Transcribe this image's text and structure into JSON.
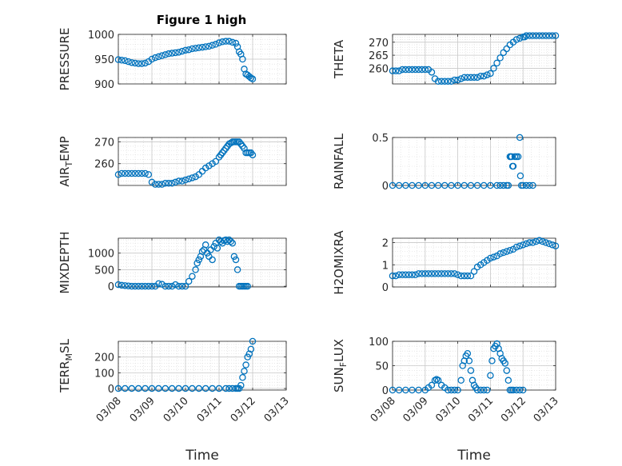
{
  "title": "Figure 1 high",
  "x_axis_label": "Time",
  "x_tick_labels": [
    "03/08",
    "03/09",
    "03/10",
    "03/11",
    "03/12",
    "03/13"
  ],
  "marker_color": "#0072BD",
  "chart_data": [
    {
      "type": "scatter",
      "id": "pressure",
      "ylabel": "PRESSURE",
      "xlabel": "",
      "title": "Figure 1 high",
      "ylim": [
        900,
        1000
      ],
      "yticks": [
        900,
        950,
        1000
      ],
      "ytick_labels": [
        "900",
        "950",
        "1000"
      ],
      "xlim": [
        0,
        5
      ],
      "grid": true,
      "x": [
        0.0,
        0.1,
        0.2,
        0.3,
        0.4,
        0.5,
        0.6,
        0.7,
        0.8,
        0.9,
        1.0,
        1.1,
        1.2,
        1.3,
        1.4,
        1.5,
        1.6,
        1.7,
        1.8,
        1.9,
        2.0,
        2.1,
        2.2,
        2.3,
        2.4,
        2.5,
        2.6,
        2.7,
        2.8,
        2.9,
        3.0,
        3.1,
        3.2,
        3.3,
        3.4,
        3.5,
        3.55,
        3.6,
        3.65,
        3.7,
        3.75,
        3.8,
        3.85,
        3.9,
        3.95,
        4.0
      ],
      "y": [
        949,
        948,
        947,
        945,
        943,
        942,
        941,
        941,
        942,
        945,
        950,
        953,
        955,
        957,
        959,
        961,
        962,
        963,
        964,
        966,
        968,
        969,
        971,
        972,
        973,
        974,
        975,
        976,
        978,
        980,
        983,
        985,
        986,
        986,
        984,
        982,
        975,
        965,
        960,
        950,
        930,
        920,
        918,
        915,
        912,
        910
      ]
    },
    {
      "type": "scatter",
      "id": "theta",
      "ylabel": "THETA",
      "xlabel": "",
      "ylim": [
        254,
        273
      ],
      "yticks": [
        260,
        265,
        270
      ],
      "ytick_labels": [
        "260",
        "265",
        "270"
      ],
      "xlim": [
        0,
        5
      ],
      "grid": true,
      "x": [
        0.0,
        0.1,
        0.2,
        0.3,
        0.4,
        0.5,
        0.6,
        0.7,
        0.8,
        0.9,
        1.0,
        1.1,
        1.2,
        1.3,
        1.4,
        1.5,
        1.6,
        1.7,
        1.8,
        1.9,
        2.0,
        2.1,
        2.2,
        2.3,
        2.4,
        2.5,
        2.6,
        2.7,
        2.8,
        2.9,
        3.0,
        3.1,
        3.2,
        3.3,
        3.4,
        3.5,
        3.6,
        3.7,
        3.8,
        3.9,
        4.0,
        4.05,
        4.1,
        4.2,
        4.3,
        4.4,
        4.5,
        4.6,
        4.7,
        4.8,
        4.9,
        5.0
      ],
      "y": [
        259,
        259,
        259,
        259.5,
        259.5,
        259.5,
        259.5,
        259.5,
        259.5,
        259.5,
        259.5,
        259.5,
        258.5,
        256,
        255,
        255,
        255,
        255,
        255,
        255.5,
        255.5,
        256,
        256.5,
        256.5,
        256.5,
        256.5,
        256.5,
        257,
        257,
        257.5,
        258,
        260,
        262,
        264,
        266,
        267.5,
        269,
        270,
        271,
        271.5,
        272,
        272,
        272.5,
        272.5,
        272.5,
        272.5,
        272.5,
        272.5,
        272.5,
        272.5,
        272.5,
        272.5
      ]
    },
    {
      "type": "scatter",
      "id": "air_temp",
      "ylabel": "AIR_TEMP",
      "ylabel_main": "AIR",
      "ylabel_sub": "T",
      "ylabel_rest": "EMP",
      "xlabel": "",
      "ylim": [
        250,
        272
      ],
      "yticks": [
        260,
        270
      ],
      "ytick_labels": [
        "260",
        "270"
      ],
      "xlim": [
        0,
        5
      ],
      "grid": true,
      "x": [
        0.0,
        0.1,
        0.2,
        0.3,
        0.4,
        0.5,
        0.6,
        0.7,
        0.8,
        0.9,
        1.0,
        1.1,
        1.2,
        1.3,
        1.4,
        1.5,
        1.6,
        1.7,
        1.8,
        1.9,
        2.0,
        2.1,
        2.2,
        2.3,
        2.4,
        2.5,
        2.6,
        2.7,
        2.8,
        2.9,
        3.0,
        3.05,
        3.1,
        3.15,
        3.2,
        3.25,
        3.3,
        3.35,
        3.4,
        3.45,
        3.5,
        3.55,
        3.6,
        3.65,
        3.7,
        3.75,
        3.8,
        3.85,
        3.9,
        3.95,
        4.0
      ],
      "y": [
        255,
        255.5,
        255.5,
        255.5,
        255.5,
        255.5,
        255.5,
        255.5,
        255.5,
        255,
        251.5,
        250.5,
        250.5,
        250.5,
        251,
        251,
        251,
        251.5,
        252,
        252,
        252.5,
        253,
        253.5,
        254,
        255,
        256.5,
        258,
        259,
        260,
        261,
        263,
        264,
        265,
        266,
        267,
        268,
        269,
        269.5,
        270,
        270,
        270,
        270,
        270,
        269,
        268,
        267,
        265,
        265,
        265,
        265,
        264
      ]
    },
    {
      "type": "scatter",
      "id": "rainfall",
      "ylabel": "RAINFALL",
      "xlabel": "",
      "ylim": [
        0,
        0.5
      ],
      "yticks": [
        0,
        0.5
      ],
      "ytick_labels": [
        "0",
        "0.5"
      ],
      "xlim": [
        0,
        5
      ],
      "grid": true,
      "x": [
        0.0,
        0.2,
        0.4,
        0.6,
        0.8,
        1.0,
        1.2,
        1.4,
        1.6,
        1.8,
        2.0,
        2.2,
        2.4,
        2.6,
        2.8,
        3.0,
        3.2,
        3.3,
        3.4,
        3.5,
        3.55,
        3.6,
        3.62,
        3.65,
        3.68,
        3.7,
        3.75,
        3.8,
        3.85,
        3.9,
        3.92,
        3.95,
        4.0,
        4.1,
        4.2,
        4.3
      ],
      "y": [
        0,
        0,
        0,
        0,
        0,
        0,
        0,
        0,
        0,
        0,
        0,
        0,
        0,
        0,
        0,
        0,
        0,
        0,
        0,
        0,
        0,
        0.3,
        0.3,
        0.3,
        0.2,
        0.2,
        0.3,
        0.3,
        0.3,
        0.5,
        0.1,
        0,
        0,
        0,
        0,
        0
      ]
    },
    {
      "type": "scatter",
      "id": "mixdepth",
      "ylabel": "MIXDEPTH",
      "xlabel": "",
      "ylim": [
        -20,
        1450
      ],
      "yticks": [
        0,
        500,
        1000
      ],
      "ytick_labels": [
        "0",
        "500",
        "1000"
      ],
      "xlim": [
        0,
        5
      ],
      "grid": true,
      "x": [
        0.0,
        0.1,
        0.2,
        0.3,
        0.4,
        0.5,
        0.6,
        0.7,
        0.8,
        0.9,
        1.0,
        1.1,
        1.2,
        1.3,
        1.4,
        1.5,
        1.6,
        1.7,
        1.8,
        1.9,
        2.0,
        2.1,
        2.2,
        2.3,
        2.35,
        2.4,
        2.45,
        2.5,
        2.55,
        2.6,
        2.65,
        2.7,
        2.75,
        2.8,
        2.85,
        2.9,
        2.95,
        3.0,
        3.05,
        3.1,
        3.15,
        3.2,
        3.25,
        3.3,
        3.35,
        3.4,
        3.45,
        3.5,
        3.55,
        3.6,
        3.65,
        3.7,
        3.75,
        3.8,
        3.85
      ],
      "y": [
        50,
        30,
        20,
        10,
        0,
        0,
        0,
        0,
        0,
        0,
        0,
        0,
        80,
        60,
        0,
        0,
        0,
        50,
        0,
        0,
        0,
        150,
        300,
        500,
        700,
        800,
        900,
        1050,
        1100,
        1250,
        1000,
        900,
        1100,
        800,
        1200,
        1300,
        1150,
        1400,
        1350,
        1300,
        1380,
        1400,
        1350,
        1400,
        1350,
        1300,
        900,
        800,
        500,
        0,
        0,
        0,
        0,
        0,
        0
      ]
    },
    {
      "type": "scatter",
      "id": "h2omixra",
      "ylabel": "H2OMIXRA",
      "xlabel": "",
      "ylim": [
        0,
        2.2
      ],
      "yticks": [
        0,
        1,
        2
      ],
      "ytick_labels": [
        "0",
        "1",
        "2"
      ],
      "xlim": [
        0,
        5
      ],
      "grid": true,
      "x": [
        0.0,
        0.1,
        0.2,
        0.3,
        0.4,
        0.5,
        0.6,
        0.7,
        0.8,
        0.9,
        1.0,
        1.1,
        1.2,
        1.3,
        1.4,
        1.5,
        1.6,
        1.7,
        1.8,
        1.9,
        2.0,
        2.1,
        2.2,
        2.3,
        2.4,
        2.5,
        2.6,
        2.7,
        2.8,
        2.9,
        3.0,
        3.1,
        3.2,
        3.3,
        3.4,
        3.5,
        3.6,
        3.7,
        3.8,
        3.9,
        4.0,
        4.1,
        4.2,
        4.3,
        4.4,
        4.5,
        4.6,
        4.7,
        4.8,
        4.9,
        5.0
      ],
      "y": [
        0.5,
        0.5,
        0.55,
        0.55,
        0.55,
        0.55,
        0.55,
        0.55,
        0.6,
        0.6,
        0.6,
        0.6,
        0.6,
        0.6,
        0.6,
        0.6,
        0.6,
        0.6,
        0.6,
        0.6,
        0.55,
        0.5,
        0.5,
        0.5,
        0.5,
        0.7,
        0.9,
        1.0,
        1.1,
        1.2,
        1.3,
        1.35,
        1.4,
        1.5,
        1.55,
        1.6,
        1.65,
        1.7,
        1.8,
        1.85,
        1.9,
        1.95,
        2.0,
        2.0,
        2.05,
        2.1,
        2.05,
        2.0,
        1.95,
        1.9,
        1.85
      ]
    },
    {
      "type": "scatter",
      "id": "terr_msl",
      "ylabel": "TERR_MSL",
      "ylabel_main": "TERR",
      "ylabel_sub": "M",
      "ylabel_rest": "SL",
      "xlabel": "Time",
      "ylim": [
        -10,
        300
      ],
      "yticks": [
        0,
        100,
        200
      ],
      "ytick_labels": [
        "0",
        "100",
        "200"
      ],
      "xlim": [
        0,
        5
      ],
      "grid": true,
      "x_tick_labels": [
        "03/08",
        "03/09",
        "03/10",
        "03/11",
        "03/12",
        "03/13"
      ],
      "x": [
        0.0,
        0.2,
        0.4,
        0.6,
        0.8,
        1.0,
        1.2,
        1.4,
        1.6,
        1.8,
        2.0,
        2.2,
        2.4,
        2.6,
        2.8,
        3.0,
        3.2,
        3.3,
        3.4,
        3.5,
        3.55,
        3.6,
        3.65,
        3.7,
        3.75,
        3.8,
        3.85,
        3.9,
        3.95,
        4.0
      ],
      "y": [
        0,
        0,
        0,
        0,
        0,
        0,
        0,
        0,
        0,
        0,
        0,
        0,
        0,
        0,
        0,
        0,
        0,
        0,
        0,
        0,
        0,
        0,
        20,
        70,
        110,
        150,
        200,
        220,
        250,
        300
      ]
    },
    {
      "type": "scatter",
      "id": "sun_flux",
      "ylabel": "SUN_FLUX",
      "ylabel_main": "SUN",
      "ylabel_sub": "F",
      "ylabel_rest": "LUX",
      "xlabel": "Time",
      "ylim": [
        0,
        100
      ],
      "yticks": [
        0,
        50,
        100
      ],
      "ytick_labels": [
        "0",
        "50",
        "100"
      ],
      "xlim": [
        0,
        5
      ],
      "grid": true,
      "x_tick_labels": [
        "03/08",
        "03/09",
        "03/10",
        "03/11",
        "03/12",
        "03/13"
      ],
      "x": [
        0.0,
        0.2,
        0.4,
        0.6,
        0.8,
        1.0,
        1.1,
        1.2,
        1.3,
        1.35,
        1.4,
        1.5,
        1.6,
        1.7,
        1.8,
        1.9,
        2.0,
        2.1,
        2.15,
        2.2,
        2.25,
        2.3,
        2.35,
        2.4,
        2.45,
        2.5,
        2.55,
        2.6,
        2.7,
        2.8,
        2.9,
        3.0,
        3.05,
        3.1,
        3.15,
        3.2,
        3.25,
        3.3,
        3.35,
        3.4,
        3.45,
        3.5,
        3.55,
        3.6,
        3.65,
        3.7,
        3.8,
        3.9,
        4.0
      ],
      "y": [
        0,
        0,
        0,
        0,
        0,
        0,
        5,
        10,
        20,
        22,
        20,
        10,
        5,
        0,
        0,
        0,
        0,
        20,
        50,
        60,
        70,
        75,
        60,
        40,
        20,
        10,
        5,
        0,
        0,
        0,
        0,
        30,
        60,
        85,
        90,
        95,
        85,
        75,
        65,
        60,
        55,
        40,
        20,
        0,
        0,
        0,
        0,
        0,
        0
      ]
    }
  ]
}
